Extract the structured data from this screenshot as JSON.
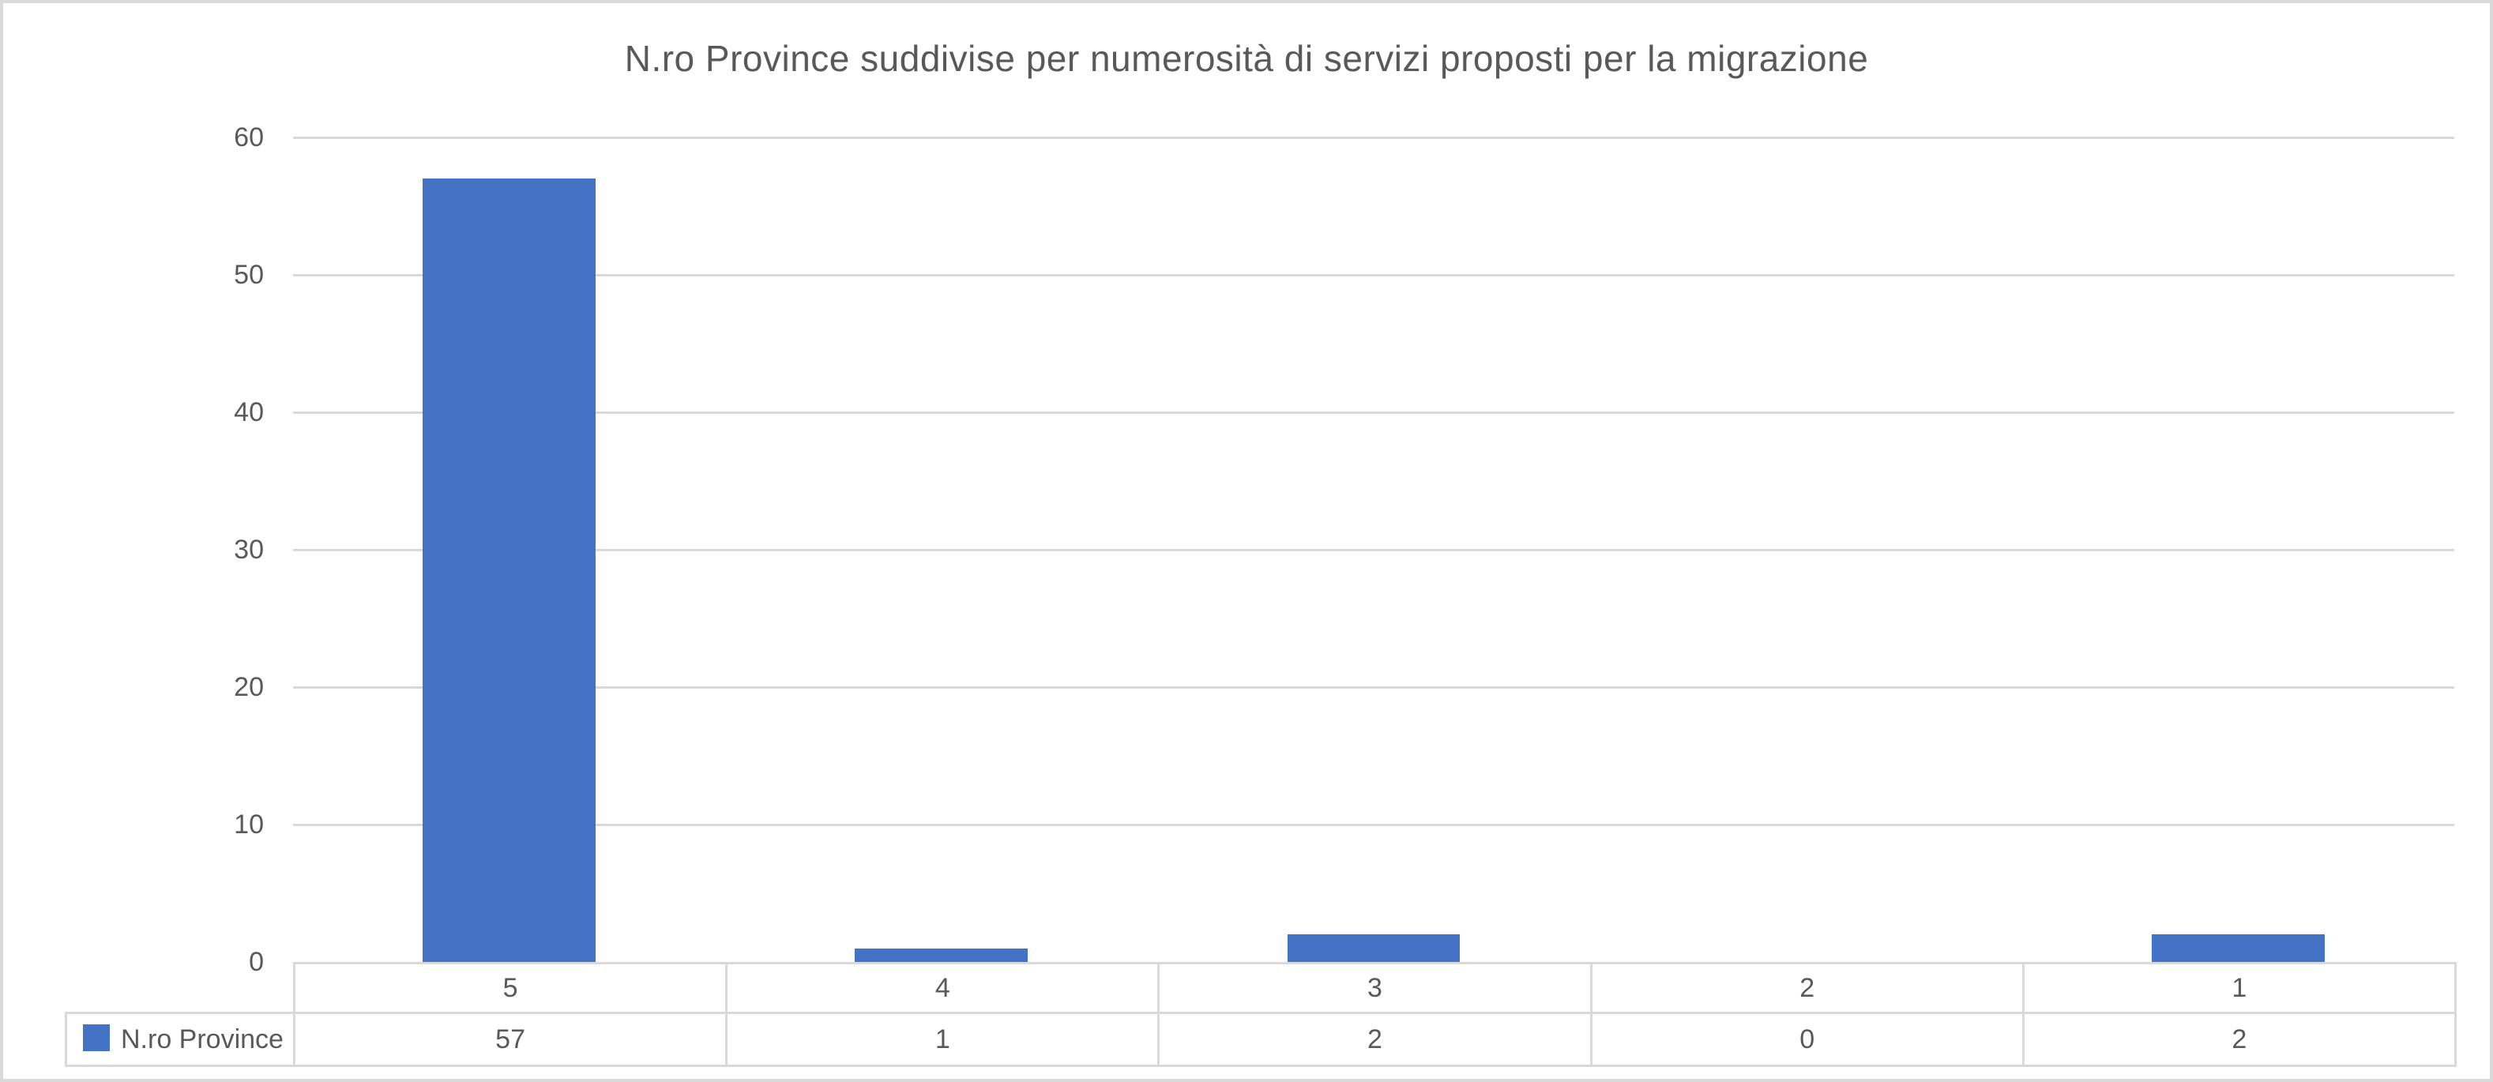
{
  "chart_data": {
    "type": "bar",
    "title": "N.ro Province suddivise per numerosità di servizi proposti per la migrazione",
    "categories": [
      "5",
      "4",
      "3",
      "2",
      "1"
    ],
    "series": [
      {
        "name": "N.ro Province",
        "values": [
          57,
          1,
          2,
          0,
          2
        ]
      }
    ],
    "xlabel": "",
    "ylabel": "",
    "ylim": [
      0,
      60
    ],
    "yticks": [
      0,
      10,
      20,
      30,
      40,
      50,
      60
    ],
    "grid": true,
    "legend_position": "data-table-left",
    "data_table": true,
    "colors": {
      "bar": "#4472C4",
      "gridline": "#D9D9D9",
      "text": "#595959",
      "frame_border": "#D9D9D9"
    }
  }
}
